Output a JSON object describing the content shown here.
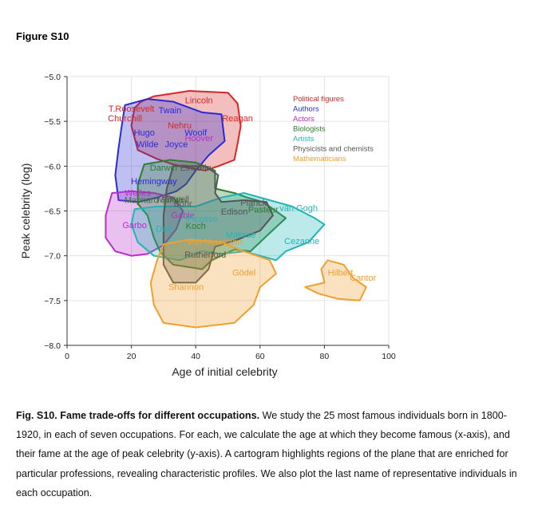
{
  "figure_label": "Figure S10",
  "caption": {
    "bold": "Fig. S10. Fame trade-offs for different occupations.",
    "text": " We study the 25 most famous individuals born in 1800-1920, in each of seven occupations. For each, we calculate the age at which they become famous (x-axis), and their fame at the age of peak celebrity (y-axis). A cartogram highlights regions of the plane that are enriched for particular professions, revealing characteristic profiles. We also plot the last name of representative individuals in each occupation."
  },
  "chart_data": {
    "type": "scatter",
    "xlabel": "Age of initial celebrity",
    "ylabel": "Peak celebrity (log)",
    "xlim": [
      0,
      100
    ],
    "ylim": [
      -8.0,
      -5.0
    ],
    "xticks": [
      0,
      20,
      40,
      60,
      80,
      100
    ],
    "yticks": [
      -8.0,
      -7.5,
      -7.0,
      -6.5,
      -6.0,
      -5.5,
      -5.0
    ],
    "xtick_labels": [
      "0",
      "20",
      "40",
      "60",
      "80",
      "100"
    ],
    "ytick_labels": [
      "−8.0",
      "−7.5",
      "−7.0",
      "−6.5",
      "−6.0",
      "−5.5",
      "−5.0"
    ],
    "grid": true,
    "legend_position": "top-right",
    "colors": {
      "political": "#d62728",
      "authors": "#2a2ad4",
      "actors": "#b62fc9",
      "biologists": "#2e7d32",
      "artists": "#22b5b5",
      "physicists": "#555555",
      "mathematicians": "#f0a030"
    },
    "series": [
      {
        "name": "Political figures",
        "color_key": "political",
        "region": [
          [
            23,
            -5.28
          ],
          [
            27,
            -5.22
          ],
          [
            38,
            -5.16
          ],
          [
            50,
            -5.18
          ],
          [
            53,
            -5.3
          ],
          [
            54,
            -5.55
          ],
          [
            53,
            -5.75
          ],
          [
            52,
            -5.93
          ],
          [
            47,
            -6.0
          ],
          [
            43,
            -6.05
          ],
          [
            38,
            -6.02
          ],
          [
            33,
            -5.98
          ],
          [
            28,
            -5.92
          ],
          [
            22,
            -5.82
          ],
          [
            20,
            -5.55
          ],
          [
            21,
            -5.35
          ]
        ],
        "labels": [
          {
            "text": "Lincoln",
            "x": 41,
            "y": -5.3
          },
          {
            "text": "T.Roosevelt",
            "x": 20,
            "y": -5.39
          },
          {
            "text": "Churchill",
            "x": 18,
            "y": -5.5
          },
          {
            "text": "Reagan",
            "x": 53,
            "y": -5.5
          },
          {
            "text": "Nehru",
            "x": 35,
            "y": -5.58
          }
        ]
      },
      {
        "name": "Authors",
        "color_key": "authors",
        "region": [
          [
            18,
            -5.32
          ],
          [
            25,
            -5.25
          ],
          [
            33,
            -5.28
          ],
          [
            42,
            -5.4
          ],
          [
            48,
            -5.42
          ],
          [
            49,
            -5.72
          ],
          [
            44,
            -5.88
          ],
          [
            40,
            -6.05
          ],
          [
            37,
            -6.2
          ],
          [
            34,
            -6.28
          ],
          [
            28,
            -6.35
          ],
          [
            22,
            -6.4
          ],
          [
            16,
            -6.38
          ],
          [
            15,
            -6.1
          ],
          [
            16,
            -5.8
          ],
          [
            17,
            -5.55
          ]
        ],
        "labels": [
          {
            "text": "Twain",
            "x": 32,
            "y": -5.41
          },
          {
            "text": "Hugo",
            "x": 24,
            "y": -5.66
          },
          {
            "text": "Woolf",
            "x": 40,
            "y": -5.66
          },
          {
            "text": "Wilde",
            "x": 25,
            "y": -5.79
          },
          {
            "text": "Joyce",
            "x": 34,
            "y": -5.79
          },
          {
            "text": "Hemingway",
            "x": 27,
            "y": -6.2
          }
        ]
      },
      {
        "name": "Actors",
        "color_key": "actors",
        "region": [
          [
            14,
            -6.3
          ],
          [
            20,
            -6.28
          ],
          [
            27,
            -6.3
          ],
          [
            33,
            -6.35
          ],
          [
            36,
            -6.5
          ],
          [
            34,
            -6.7
          ],
          [
            30,
            -6.88
          ],
          [
            25,
            -6.98
          ],
          [
            20,
            -7.0
          ],
          [
            15,
            -6.95
          ],
          [
            12,
            -6.8
          ],
          [
            12,
            -6.55
          ]
        ],
        "labels": [
          {
            "text": "Hoover",
            "x": 41,
            "y": -5.72
          },
          {
            "text": "Welles",
            "x": 22,
            "y": -6.33
          },
          {
            "text": "Gable",
            "x": 36,
            "y": -6.58
          },
          {
            "text": "Garbo",
            "x": 21,
            "y": -6.69
          }
        ]
      },
      {
        "name": "Biologists",
        "color_key": "biologists",
        "region": [
          [
            24,
            -5.98
          ],
          [
            32,
            -5.93
          ],
          [
            40,
            -5.96
          ],
          [
            46,
            -6.05
          ],
          [
            46,
            -6.25
          ],
          [
            52,
            -6.3
          ],
          [
            56,
            -6.35
          ],
          [
            61,
            -6.4
          ],
          [
            68,
            -6.58
          ],
          [
            62,
            -6.78
          ],
          [
            57,
            -6.95
          ],
          [
            52,
            -6.93
          ],
          [
            45,
            -7.05
          ],
          [
            42,
            -7.15
          ],
          [
            33,
            -7.1
          ],
          [
            29,
            -6.96
          ],
          [
            27,
            -6.8
          ],
          [
            25,
            -6.55
          ],
          [
            22,
            -6.42
          ],
          [
            22,
            -6.2
          ]
        ],
        "labels": [
          {
            "text": "Darwin",
            "x": 30,
            "y": -6.05
          },
          {
            "text": "Pasteur",
            "x": 61,
            "y": -6.52
          },
          {
            "text": "Koch",
            "x": 40,
            "y": -6.7
          }
        ]
      },
      {
        "name": "Artists",
        "color_key": "artists",
        "region": [
          [
            21,
            -6.48
          ],
          [
            28,
            -6.45
          ],
          [
            40,
            -6.45
          ],
          [
            48,
            -6.35
          ],
          [
            55,
            -6.3
          ],
          [
            62,
            -6.37
          ],
          [
            70,
            -6.45
          ],
          [
            77,
            -6.58
          ],
          [
            80,
            -6.65
          ],
          [
            75,
            -6.85
          ],
          [
            68,
            -6.95
          ],
          [
            65,
            -7.05
          ],
          [
            60,
            -7.0
          ],
          [
            55,
            -6.95
          ],
          [
            48,
            -6.98
          ],
          [
            42,
            -6.95
          ],
          [
            35,
            -7.05
          ],
          [
            27,
            -7.0
          ],
          [
            22,
            -6.85
          ],
          [
            20,
            -6.65
          ]
        ],
        "labels": [
          {
            "text": "Picasso",
            "x": 42,
            "y": -6.62
          },
          {
            "text": "Dali",
            "x": 30,
            "y": -6.73
          },
          {
            "text": "Matisse",
            "x": 54,
            "y": -6.8
          },
          {
            "text": "van Gogh",
            "x": 72,
            "y": -6.5
          },
          {
            "text": "Cezanne",
            "x": 73,
            "y": -6.87
          }
        ]
      },
      {
        "name": "Physicists and chemists",
        "color_key": "physicists",
        "region": [
          [
            33,
            -6.0
          ],
          [
            43,
            -6.0
          ],
          [
            47,
            -6.1
          ],
          [
            46,
            -6.3
          ],
          [
            48,
            -6.4
          ],
          [
            55,
            -6.38
          ],
          [
            62,
            -6.4
          ],
          [
            64,
            -6.55
          ],
          [
            60,
            -6.72
          ],
          [
            53,
            -6.82
          ],
          [
            46,
            -6.9
          ],
          [
            44,
            -7.15
          ],
          [
            40,
            -7.3
          ],
          [
            33,
            -7.3
          ],
          [
            30,
            -7.1
          ],
          [
            30,
            -6.85
          ],
          [
            30,
            -6.55
          ],
          [
            31,
            -6.25
          ]
        ],
        "labels": [
          {
            "text": "Einstein",
            "x": 40,
            "y": -6.05
          },
          {
            "text": "Maxwell",
            "x": 33,
            "y": -6.4
          },
          {
            "text": "Bohr",
            "x": 36,
            "y": -6.45
          },
          {
            "text": "Planck",
            "x": 58,
            "y": -6.44
          },
          {
            "text": "Edison",
            "x": 52,
            "y": -6.54
          },
          {
            "text": "Rutherford",
            "x": 43,
            "y": -7.02
          }
        ]
      },
      {
        "name": "Mathematicians",
        "color_key": "mathematicians",
        "region": [
          [
            30,
            -6.87
          ],
          [
            38,
            -6.82
          ],
          [
            48,
            -6.85
          ],
          [
            55,
            -6.95
          ],
          [
            63,
            -7.05
          ],
          [
            65,
            -7.2
          ],
          [
            60,
            -7.35
          ],
          [
            58,
            -7.55
          ],
          [
            52,
            -7.75
          ],
          [
            40,
            -7.8
          ],
          [
            30,
            -7.75
          ],
          [
            27,
            -7.55
          ],
          [
            26,
            -7.3
          ],
          [
            28,
            -7.05
          ]
        ],
        "region2": [
          [
            81,
            -7.05
          ],
          [
            86,
            -7.1
          ],
          [
            89,
            -7.25
          ],
          [
            93,
            -7.35
          ],
          [
            91,
            -7.5
          ],
          [
            84,
            -7.48
          ],
          [
            78,
            -7.42
          ],
          [
            74,
            -7.35
          ],
          [
            80,
            -7.3
          ],
          [
            79,
            -7.15
          ]
        ],
        "labels": [
          {
            "text": "von Neumann",
            "x": 46,
            "y": -6.88
          },
          {
            "text": "Gödel",
            "x": 55,
            "y": -7.22
          },
          {
            "text": "Shannon",
            "x": 37,
            "y": -7.38
          },
          {
            "text": "Hilbert",
            "x": 85,
            "y": -7.22
          },
          {
            "text": "Cantor",
            "x": 92,
            "y": -7.28
          }
        ]
      }
    ],
    "extra_labels": [
      {
        "text": "Maynard Smith",
        "x": 27,
        "y": -6.41,
        "color_key": "biologists"
      },
      {
        "text": "Hemingway",
        "x": 27,
        "y": -6.2,
        "color_key": "authors"
      }
    ],
    "legend_entries": [
      {
        "text": "Political figures",
        "color_key": "political"
      },
      {
        "text": "Authors",
        "color_key": "authors"
      },
      {
        "text": "Actors",
        "color_key": "actors"
      },
      {
        "text": "Biologists",
        "color_key": "biologists"
      },
      {
        "text": "Artists",
        "color_key": "artists"
      },
      {
        "text": "Physicists and chemists",
        "color_key": "physicists"
      },
      {
        "text": "Mathematicians",
        "color_key": "mathematicians"
      }
    ]
  }
}
